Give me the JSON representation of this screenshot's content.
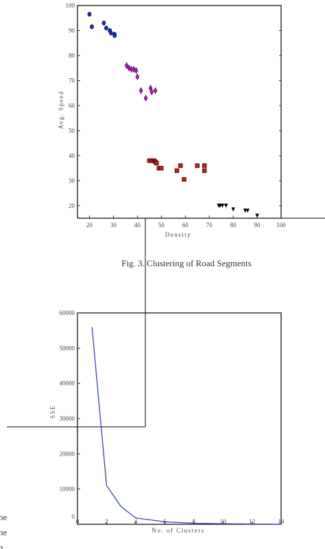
{
  "caption": "Fig. 3. Clustering of Road Segments",
  "clipped_text": [
    "he",
    "he",
    "n"
  ],
  "chart_data": [
    {
      "type": "scatter",
      "xlabel": "Density",
      "ylabel": "Avg. Speed",
      "xlim": [
        15,
        100
      ],
      "ylim": [
        15,
        100
      ],
      "xticks": [
        "20",
        "30",
        "40",
        "50",
        "60",
        "70",
        "80",
        "90",
        "100"
      ],
      "yticks": [
        "20",
        "30",
        "40",
        "50",
        "60",
        "70",
        "80",
        "90",
        "100"
      ],
      "grid": false,
      "series": [
        {
          "marker": "circle",
          "color": "#1a2ea8",
          "x": [
            20,
            21,
            26,
            27,
            28.5,
            29,
            30.5,
            30.5
          ],
          "y": [
            96.5,
            91.5,
            93,
            91,
            90,
            89,
            88.5,
            88
          ]
        },
        {
          "marker": "diamond",
          "color": "#a020a8",
          "x": [
            35.5,
            36.5,
            37.5,
            38.5,
            39.5,
            40,
            41.5,
            43.5,
            45.5,
            46,
            47.5
          ],
          "y": [
            76,
            75,
            74.5,
            74.5,
            74,
            71.5,
            66,
            63,
            67,
            65.5,
            66
          ]
        },
        {
          "marker": "square",
          "color": "#c81e1e",
          "x": [
            45,
            46,
            47,
            47.5,
            48,
            49,
            50,
            56.5,
            58,
            59.5,
            65,
            68,
            68
          ],
          "y": [
            38,
            38,
            38,
            37.5,
            37,
            35,
            35,
            34,
            36,
            30.5,
            36,
            36,
            34
          ]
        },
        {
          "marker": "triangle-down",
          "color": "#000000",
          "x": [
            74,
            74.5,
            75.5,
            77,
            80,
            85,
            86,
            90
          ],
          "y": [
            20,
            20,
            20,
            20,
            18.5,
            18,
            18,
            16
          ]
        }
      ]
    },
    {
      "type": "line",
      "xlabel": "No. of Clusters",
      "ylabel": "SSE",
      "xlim": [
        0,
        14
      ],
      "ylim": [
        0,
        60000
      ],
      "xticks": [
        "0",
        "2",
        "4",
        "6",
        "8",
        "10",
        "12",
        "14"
      ],
      "yticks": [
        "0",
        "10000",
        "20000",
        "30000",
        "40000",
        "50000",
        "60000"
      ],
      "grid": false,
      "series": [
        {
          "color": "#3344bb",
          "x": [
            1,
            2,
            3,
            4,
            6,
            8,
            10,
            12,
            14
          ],
          "y": [
            56000,
            11000,
            5000,
            1800,
            700,
            300,
            150,
            80,
            40
          ]
        }
      ]
    }
  ]
}
